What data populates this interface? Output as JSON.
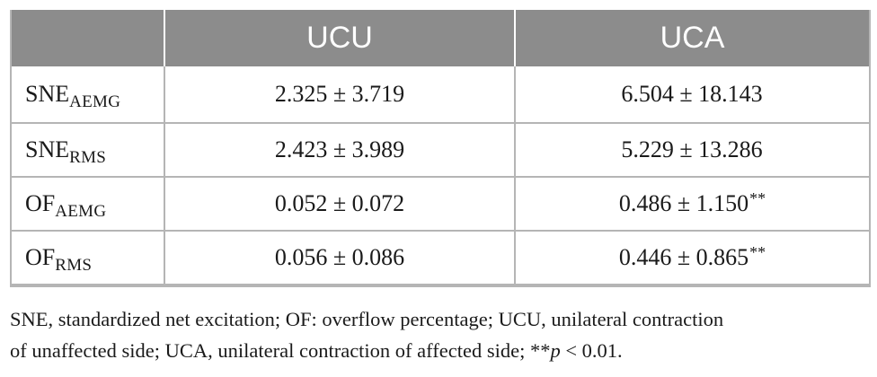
{
  "table": {
    "columns": [
      "",
      "UCU",
      "UCA"
    ],
    "rows": [
      {
        "label_main": "SNE",
        "label_sub": "AEMG",
        "ucu": "2.325 ± 3.719",
        "uca": "6.504 ± 18.143",
        "uca_mark": ""
      },
      {
        "label_main": "SNE",
        "label_sub": "RMS",
        "ucu": "2.423 ± 3.989",
        "uca": "5.229 ± 13.286",
        "uca_mark": ""
      },
      {
        "label_main": "OF",
        "label_sub": "AEMG",
        "ucu": "0.052 ± 0.072",
        "uca": "0.486 ± 1.150",
        "uca_mark": "**"
      },
      {
        "label_main": "OF",
        "label_sub": "RMS",
        "ucu": "0.056 ± 0.086",
        "uca": "0.446 ± 0.865",
        "uca_mark": "**"
      }
    ]
  },
  "footnote": {
    "line1": "SNE, standardized net excitation; OF: overflow percentage; UCU, unilateral contraction",
    "line2_before": "of unaffected side; UCA, unilateral contraction of affected side; **",
    "p_symbol": "p",
    "line2_after": " < 0.01."
  }
}
